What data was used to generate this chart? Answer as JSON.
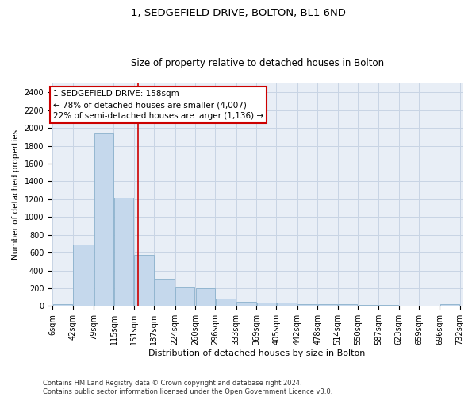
{
  "title": "1, SEDGEFIELD DRIVE, BOLTON, BL1 6ND",
  "subtitle": "Size of property relative to detached houses in Bolton",
  "xlabel": "Distribution of detached houses by size in Bolton",
  "ylabel": "Number of detached properties",
  "bar_color": "#c5d8ec",
  "bar_edgecolor": "#8ab0cc",
  "grid_color": "#c8d4e4",
  "bg_color": "#e8eef6",
  "vline_x": 158,
  "vline_color": "#cc0000",
  "annotation_text": "1 SEDGEFIELD DRIVE: 158sqm\n← 78% of detached houses are smaller (4,007)\n22% of semi-detached houses are larger (1,136) →",
  "annotation_box_edgecolor": "#cc0000",
  "bin_edges": [
    6,
    42,
    79,
    115,
    151,
    187,
    224,
    260,
    296,
    333,
    369,
    405,
    442,
    478,
    514,
    550,
    587,
    623,
    659,
    696,
    732
  ],
  "bar_heights": [
    18,
    690,
    1940,
    1220,
    570,
    300,
    205,
    200,
    80,
    45,
    38,
    35,
    25,
    22,
    22,
    16,
    10,
    5,
    4,
    18
  ],
  "ylim": [
    0,
    2500
  ],
  "yticks": [
    0,
    200,
    400,
    600,
    800,
    1000,
    1200,
    1400,
    1600,
    1800,
    2000,
    2200,
    2400
  ],
  "footnote": "Contains HM Land Registry data © Crown copyright and database right 2024.\nContains public sector information licensed under the Open Government Licence v3.0.",
  "title_fontsize": 9.5,
  "subtitle_fontsize": 8.5,
  "xlabel_fontsize": 8,
  "ylabel_fontsize": 7.5,
  "tick_fontsize": 7,
  "annot_fontsize": 7.5,
  "footnote_fontsize": 6
}
